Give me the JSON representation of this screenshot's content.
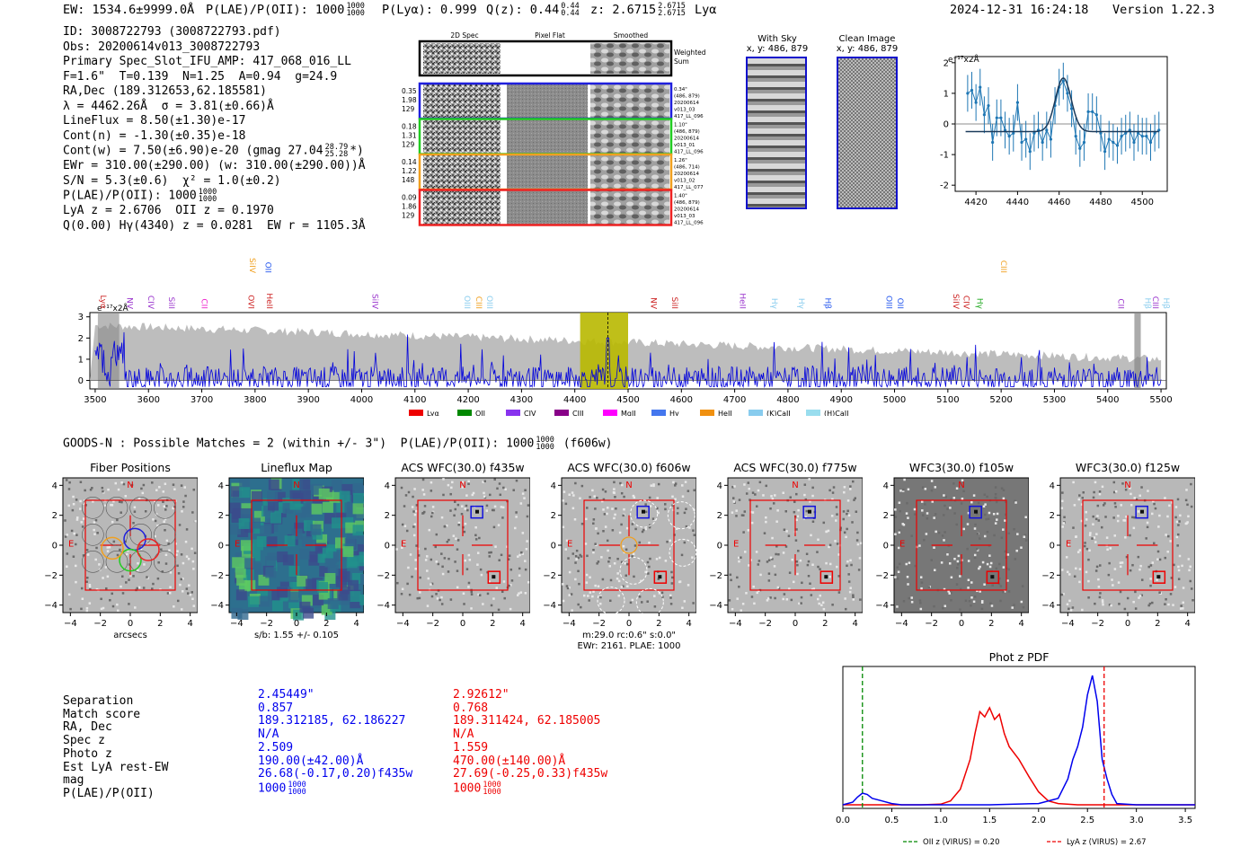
{
  "header": {
    "ew_prefix": "EW: 1534.6±9999.0Å",
    "plae_prefix": "P(LAE)/P(OII): 1000",
    "plae_hi": "1000",
    "plae_lo": "1000",
    "plya": "P(Lyα): 0.999",
    "qz": "Q(z): 0.44",
    "qz_hi": "0.44",
    "qz_lo": "0.44",
    "z": "z: 2.6715",
    "z_hi": "2.6715",
    "z_lo": "2.6715",
    "z_line": "Lyα",
    "datetime": "2024-12-31 16:24:18",
    "version": "Version 1.22.3"
  },
  "info": {
    "id": "ID: 3008722793 (3008722793.pdf)",
    "obs": "Obs: 20200614v013_3008722793",
    "primary": "Primary Spec_Slot_IFU_AMP: 417_068_016_LL",
    "fit": "F=1.6\"  T=0.139  N=1.25  A=0.94  g=24.9",
    "radec": "RA,Dec (189.312653,62.185581)",
    "lambda": "λ = 4462.26Å  σ = 3.81(±0.66)Å",
    "lineflux": "LineFlux = 8.50(±1.30)e-17",
    "contn": "Cont(n) = -1.30(±0.35)e-18",
    "contw": "Cont(w) = 7.50(±6.90)e-20 (gmag 27.04",
    "contw_hi": "28.79",
    "contw_lo": "25.28",
    "contw_end": "*)",
    "ewr": "EWr = 310.00(±290.00) (w: 310.00(±290.00))Å",
    "sn": "S/N = 5.3(±0.6)  χ² = 1.0(±0.2)",
    "plae": "P(LAE)/P(OII): 1000",
    "plae_hi": "1000",
    "plae_lo": "1000",
    "lya": "LyA z = 2.6706  OII z = 0.1970",
    "q": "Q(0.00) Hγ(4340) z = 0.0281  EW r = 1105.3Å"
  },
  "fiber_panel": {
    "columns": [
      "2D Spec",
      "Pixel Flat",
      "Smoothed"
    ],
    "weighted_sum": "Weighted\nSum",
    "rows": [
      {
        "left": [
          "0.35",
          "1.98",
          "129"
        ],
        "right": [
          "0.34\"",
          "(486, 879)",
          "20200614",
          "v013_03",
          "417_LL_096"
        ],
        "color": "#1f1fdd"
      },
      {
        "left": [
          "0.18",
          "1.31",
          "129"
        ],
        "right": [
          "1.10\"",
          "(486, 879)",
          "20200614",
          "v013_01",
          "417_LL_096"
        ],
        "color": "#22cc22"
      },
      {
        "left": [
          "0.14",
          "1.22",
          "148"
        ],
        "right": [
          "1.26\"",
          "(486, 714)",
          "20200614",
          "v013_02",
          "417_LL_077"
        ],
        "color": "#f0a020"
      },
      {
        "left": [
          "0.09",
          "1.86",
          "129"
        ],
        "right": [
          "1.40\"",
          "(486, 879)",
          "20200614",
          "v013_03",
          "417_LL_096"
        ],
        "color": "#ee2222"
      }
    ]
  },
  "sky": {
    "title": "With Sky",
    "sub": "x, y: 486, 879"
  },
  "clean": {
    "title": "Clean Image",
    "sub": "x, y: 486, 879"
  },
  "zoom_chart": {
    "type": "line",
    "unit_label": "e⁻¹⁷x2Å",
    "xlim": [
      4410,
      4512
    ],
    "ylim": [
      -2.2,
      2.2
    ],
    "xticks": [
      4420,
      4440,
      4460,
      4480,
      4500
    ],
    "yticks": [
      -2,
      -1,
      0,
      1,
      2
    ],
    "data_x": [
      4416,
      4418,
      4420,
      4422,
      4424,
      4426,
      4428,
      4430,
      4432,
      4434,
      4436,
      4438,
      4440,
      4442,
      4444,
      4446,
      4448,
      4450,
      4452,
      4454,
      4456,
      4458,
      4460,
      4462,
      4464,
      4466,
      4468,
      4470,
      4472,
      4474,
      4476,
      4478,
      4480,
      4482,
      4484,
      4486,
      4488,
      4490,
      4492,
      4494,
      4496,
      4498,
      4500,
      4502,
      4504,
      4506,
      4508
    ],
    "data_y": [
      1.0,
      1.1,
      0.7,
      1.2,
      0.3,
      0.6,
      -0.6,
      0.2,
      0.2,
      -0.2,
      -0.4,
      -0.3,
      0.7,
      -0.6,
      -0.5,
      -0.9,
      -0.3,
      -0.2,
      -0.6,
      -0.2,
      -0.5,
      0.6,
      1.2,
      1.4,
      1.0,
      0.5,
      -0.4,
      -0.8,
      -0.6,
      0.4,
      0.4,
      0.3,
      -0.3,
      -0.9,
      -0.5,
      -0.6,
      -0.7,
      -0.4,
      -0.3,
      -0.2,
      -0.6,
      -0.3,
      -0.4,
      -0.4,
      -0.6,
      -0.3,
      -0.2
    ],
    "err": [
      0.6,
      0.6,
      0.6,
      0.6,
      0.6,
      0.6,
      0.6,
      0.6,
      0.6,
      0.6,
      0.6,
      0.6,
      0.6,
      0.6,
      0.6,
      0.6,
      0.6,
      0.6,
      0.6,
      0.6,
      0.6,
      0.6,
      0.6,
      0.6,
      0.6,
      0.6,
      0.6,
      0.6,
      0.6,
      0.6,
      0.6,
      0.6,
      0.6,
      0.6,
      0.6,
      0.6,
      0.6,
      0.6,
      0.6,
      0.6,
      0.6,
      0.6,
      0.6,
      0.6,
      0.6,
      0.6,
      0.6
    ],
    "fit_baseline": -0.25,
    "fit_amp": 1.75,
    "fit_center": 4462,
    "fit_sigma": 3.8,
    "fit_range": [
      4415,
      4508
    ]
  },
  "full_spectrum": {
    "type": "line",
    "unit_label": "e⁻¹⁷x2Å",
    "xlim": [
      3490,
      5510
    ],
    "ylim": [
      -0.4,
      3.2
    ],
    "xticks": [
      3500,
      3600,
      3700,
      3800,
      3900,
      4000,
      4100,
      4200,
      4300,
      4400,
      4500,
      4600,
      4700,
      4800,
      4900,
      5000,
      5100,
      5200,
      5300,
      5400,
      5500
    ],
    "yticks": [
      0,
      1,
      2,
      3
    ],
    "highlight_range": [
      4410,
      4500
    ],
    "highlight_line": 4462,
    "line_labels": [
      {
        "text": "Lyα",
        "x": 3510,
        "color": "#cc2222",
        "row": 2
      },
      {
        "text": "NV",
        "x": 3560,
        "color": "#9933cc",
        "row": 2
      },
      {
        "text": "CIV",
        "x": 3600,
        "color": "#9933cc",
        "row": 2
      },
      {
        "text": "SiII",
        "x": 3638,
        "color": "#9933cc",
        "row": 2
      },
      {
        "text": "CII",
        "x": 3700,
        "color": "#ee22cc",
        "row": 2
      },
      {
        "text": "OVI",
        "x": 3788,
        "color": "#cc2222",
        "row": 2
      },
      {
        "text": "HeII",
        "x": 3822,
        "color": "#cc2222",
        "row": 2
      },
      {
        "text": "SiIV",
        "x": 3790,
        "color": "#f0a020",
        "row": 1
      },
      {
        "text": "OII",
        "x": 3820,
        "color": "#2255ee",
        "row": 1
      },
      {
        "text": "SiIV",
        "x": 4020,
        "color": "#9933cc",
        "row": 2
      },
      {
        "text": "OIII",
        "x": 4193,
        "color": "#88ccee",
        "row": 2
      },
      {
        "text": "CIII",
        "x": 4215,
        "color": "#f0a020",
        "row": 2
      },
      {
        "text": "OIII",
        "x": 4235,
        "color": "#88ccee",
        "row": 2
      },
      {
        "text": "NV",
        "x": 4543,
        "color": "#cc2222",
        "row": 2
      },
      {
        "text": "SiII",
        "x": 4583,
        "color": "#cc2222",
        "row": 2
      },
      {
        "text": "HeII",
        "x": 4710,
        "color": "#9933cc",
        "row": 2
      },
      {
        "text": "Hγ",
        "x": 4770,
        "color": "#88ccee",
        "row": 2
      },
      {
        "text": "Hγ",
        "x": 4820,
        "color": "#88ccee",
        "row": 2
      },
      {
        "text": "Hβ",
        "x": 4870,
        "color": "#2255ee",
        "row": 2
      },
      {
        "text": "OIII",
        "x": 4985,
        "color": "#2255ee",
        "row": 2
      },
      {
        "text": "OII",
        "x": 5006,
        "color": "#2255ee",
        "row": 2
      },
      {
        "text": "SiIV",
        "x": 5110,
        "color": "#cc2222",
        "row": 2
      },
      {
        "text": "CIV",
        "x": 5130,
        "color": "#cc2222",
        "row": 2
      },
      {
        "text": "Hγ",
        "x": 5155,
        "color": "#22aa22",
        "row": 2
      },
      {
        "text": "CIII",
        "x": 5200,
        "color": "#f0a020",
        "row": 1
      },
      {
        "text": "CII",
        "x": 5420,
        "color": "#9933cc",
        "row": 2
      },
      {
        "text": "Hβ",
        "x": 5470,
        "color": "#88ccee",
        "row": 2
      },
      {
        "text": "CIII",
        "x": 5485,
        "color": "#9933cc",
        "row": 2
      },
      {
        "text": "Hβ",
        "x": 5505,
        "color": "#88ccee",
        "row": 2
      }
    ],
    "legend": [
      {
        "label": "Lyα",
        "color": "#ee0000"
      },
      {
        "label": "OII",
        "color": "#008800"
      },
      {
        "label": "CIV",
        "color": "#8833ee"
      },
      {
        "label": "CIII",
        "color": "#880088"
      },
      {
        "label": "MgII",
        "color": "#ff00ff"
      },
      {
        "label": "Hγ",
        "color": "#4477ee"
      },
      {
        "label": "HeII",
        "color": "#f09010"
      },
      {
        "label": "(K)CaII",
        "color": "#88ccee"
      },
      {
        "label": "(H)CaII",
        "color": "#99ddee"
      }
    ]
  },
  "goods": {
    "text": "GOODS-N : Possible Matches = 2 (within +/- 3\")  P(LAE)/P(OII): 1000",
    "hi": "1000",
    "lo": "1000",
    "suffix": "(f606w)"
  },
  "cutouts": [
    {
      "title": "Fiber Positions",
      "bg": "gray",
      "sub": "arcsecs"
    },
    {
      "title": "Lineflux Map",
      "bg": "viridis",
      "sub": "s/b: 1.55 +/- 0.105"
    },
    {
      "title": "ACS WFC(30.0) f435w",
      "bg": "gray",
      "sub": ""
    },
    {
      "title": "ACS WFC(30.0) f606w",
      "bg": "gray",
      "sub": "m:29.0 rc:0.6\"  s:0.0\"\nEWr: 2161. PLAE: 1000"
    },
    {
      "title": "ACS WFC(30.0) f775w",
      "bg": "gray",
      "sub": ""
    },
    {
      "title": "WFC3(30.0) f105w",
      "bg": "darkgray",
      "sub": ""
    },
    {
      "title": "WFC3(30.0) f125w",
      "bg": "gray",
      "sub": ""
    }
  ],
  "cutout_axis": {
    "ticks": [
      "−4",
      "−2",
      "0",
      "2",
      "4"
    ],
    "north": "N",
    "east": "E"
  },
  "match_table": {
    "labels": [
      "Separation",
      "Match score",
      "RA, Dec",
      "Spec z",
      "Photo z",
      "Est LyA rest-EW",
      "mag",
      "P(LAE)/P(OII)"
    ],
    "blue": [
      "2.45449\"",
      "0.857",
      "189.312185, 62.186227",
      "N/A",
      "2.509",
      "190.00(±42.00)Å",
      "26.68(-0.17,0.20)f435w",
      "1000"
    ],
    "red": [
      "2.92612\"",
      "0.768",
      "189.311424, 62.185005",
      "N/A",
      "1.559",
      "470.00(±140.00)Å",
      "27.69(-0.25,0.33)f435w",
      "1000"
    ],
    "blue_frac": [
      "1000",
      "1000"
    ],
    "red_frac": [
      "1000",
      "1000"
    ]
  },
  "photz": {
    "type": "line",
    "title": "Phot z PDF",
    "xlim": [
      0,
      3.6
    ],
    "xticks": [
      "0.0",
      "0.5",
      "1.0",
      "1.5",
      "2.0",
      "2.5",
      "3.0",
      "3.5"
    ],
    "oii_z": 0.2,
    "lya_z": 2.67,
    "legend_oii": "OII z (VIRUS) = 0.20",
    "legend_lya": "LyA z (VIRUS) = 2.67",
    "blue_x": [
      0,
      0.1,
      0.15,
      0.2,
      0.25,
      0.3,
      0.4,
      0.5,
      0.6,
      1.0,
      1.5,
      2.0,
      2.2,
      2.3,
      2.35,
      2.4,
      2.45,
      2.5,
      2.55,
      2.6,
      2.65,
      2.7,
      2.75,
      2.8,
      3.0,
      3.6
    ],
    "blue_y": [
      0.0,
      0.02,
      0.06,
      0.09,
      0.08,
      0.05,
      0.03,
      0.01,
      0.0,
      0.0,
      0.0,
      0.01,
      0.05,
      0.2,
      0.35,
      0.45,
      0.6,
      0.85,
      1.0,
      0.8,
      0.35,
      0.2,
      0.08,
      0.01,
      0.0,
      0.0
    ],
    "red_x": [
      0,
      0.8,
      1.0,
      1.1,
      1.2,
      1.3,
      1.35,
      1.4,
      1.45,
      1.5,
      1.55,
      1.6,
      1.65,
      1.7,
      1.8,
      1.9,
      2.0,
      2.1,
      2.2,
      2.4,
      3.6
    ],
    "red_y": [
      0.0,
      0.0,
      0.005,
      0.03,
      0.12,
      0.35,
      0.55,
      0.72,
      0.68,
      0.75,
      0.66,
      0.7,
      0.55,
      0.45,
      0.35,
      0.22,
      0.1,
      0.03,
      0.01,
      0.0,
      0.0
    ]
  }
}
